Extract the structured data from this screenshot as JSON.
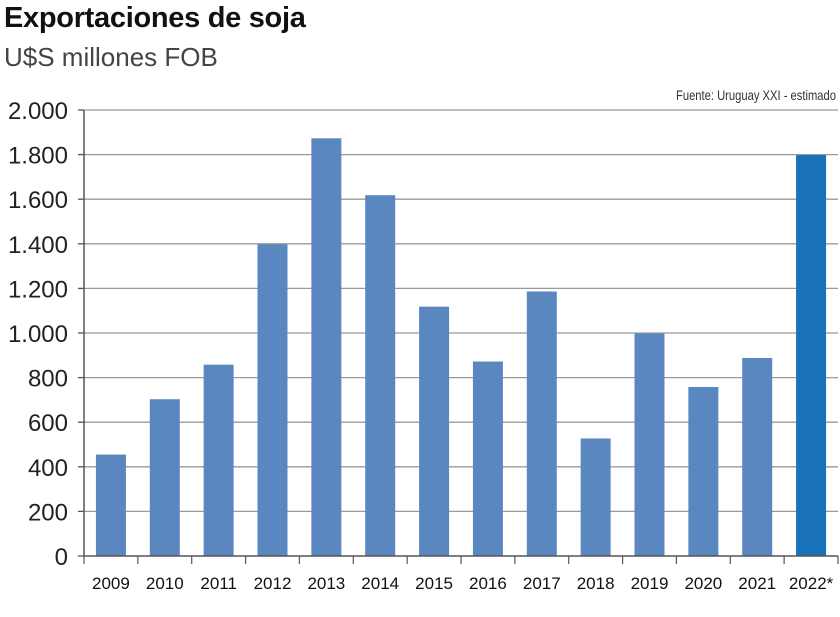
{
  "chart_data": {
    "type": "bar",
    "title": "Exportaciones de soja",
    "subtitle": "U$S millones FOB",
    "source": "Fuente: Uruguay XXI - estimado",
    "categories": [
      "2009",
      "2010",
      "2011",
      "2012",
      "2013",
      "2014",
      "2015",
      "2016",
      "2017",
      "2018",
      "2019",
      "2020",
      "2021",
      "2022*"
    ],
    "values": [
      455,
      703,
      858,
      1398,
      1873,
      1618,
      1118,
      872,
      1186,
      527,
      998,
      758,
      888,
      1798
    ],
    "highlight_index": 13,
    "ylim": [
      0,
      2000
    ],
    "yticks": [
      0,
      200,
      400,
      600,
      800,
      1000,
      1200,
      1400,
      1600,
      1800,
      2000
    ],
    "ytick_labels": [
      "0",
      "200",
      "400",
      "600",
      "800",
      "1.000",
      "1.200",
      "1.400",
      "1.600",
      "1.800",
      "2.000"
    ],
    "xlabel": "",
    "ylabel": "",
    "grid": true,
    "colors": {
      "bar": "#5b87c0",
      "bar_highlight": "#1a72b8",
      "grid": "#9a9a9a",
      "axis": "#555555"
    }
  }
}
